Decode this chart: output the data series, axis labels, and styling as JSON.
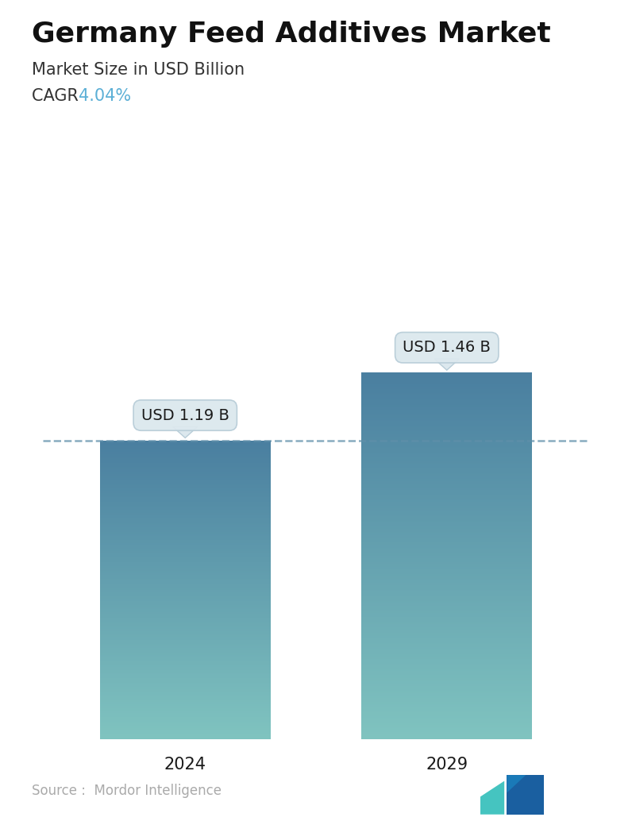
{
  "title": "Germany Feed Additives Market",
  "subtitle": "Market Size in USD Billion",
  "cagr_label": "CAGR ",
  "cagr_value": "4.04%",
  "cagr_color": "#5bafd6",
  "categories": [
    "2024",
    "2029"
  ],
  "values": [
    1.19,
    1.46
  ],
  "bar_labels": [
    "USD 1.19 B",
    "USD 1.46 B"
  ],
  "bar_top_color": "#4a7fa0",
  "bar_bottom_color": "#80c4c0",
  "dashed_line_color": "#6090aa",
  "dashed_line_y": 1.19,
  "source_text": "Source :  Mordor Intelligence",
  "source_color": "#aaaaaa",
  "background_color": "#ffffff",
  "title_fontsize": 26,
  "subtitle_fontsize": 15,
  "cagr_fontsize": 15,
  "bar_label_fontsize": 14,
  "tick_fontsize": 15,
  "source_fontsize": 12,
  "ylim": [
    0,
    1.8
  ],
  "bar_width": 0.3,
  "x_positions": [
    0.27,
    0.73
  ],
  "callout_bg": "#dce8ee",
  "callout_border": "#b8cdd8"
}
